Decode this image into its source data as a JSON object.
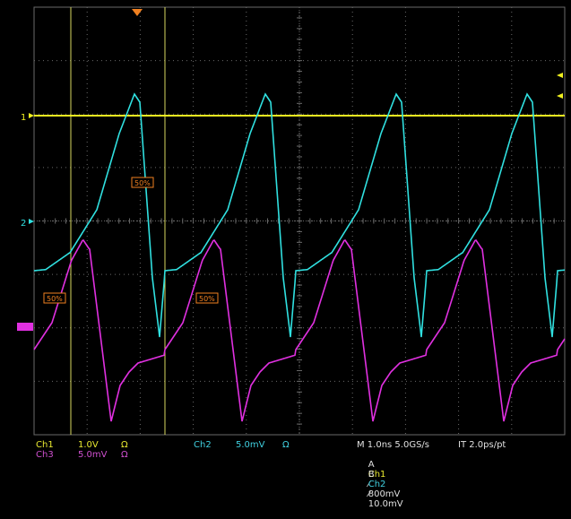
{
  "colors": {
    "ch1": "#f0f020",
    "ch2": "#30e0e0",
    "ch3": "#e030e0",
    "grid": "#6a6a6a",
    "trigger_marker": "#f08020",
    "cursor": "#d8d860",
    "label_box": "#f08020"
  },
  "markers": {
    "ch1_ref": "1",
    "ch2_ref": "2",
    "trigger_level_label": "50%"
  },
  "channels": {
    "ch1": {
      "name": "Ch1",
      "scale": "1.0V",
      "coupling": "Ω"
    },
    "ch2": {
      "name": "Ch2",
      "scale": "5.0mV",
      "coupling": "Ω"
    },
    "ch3": {
      "name": "Ch3",
      "scale": "5.0mV",
      "coupling": "Ω"
    }
  },
  "timebase": {
    "text": "M 1.0ns 5.0GS/s",
    "interp": "IT 2.0ps/pt"
  },
  "trigger": {
    "a_prefix": "A",
    "a_source": "Ch1",
    "a_slope": "⁄",
    "a_level": "800mV",
    "b_prefix": "B",
    "b_source": "Ch2",
    "b_slope": "⁄",
    "b_level": "10.0mV"
  },
  "icons": {
    "trigger_pos": "trigger-position-triangle-icon",
    "ch1_ref": "arrow-right-icon",
    "ch2_ref": "arrow-right-icon",
    "ch3_ref": "ch3-ground-marker-icon",
    "trig_level": "trigger-level-arrow-icon"
  }
}
